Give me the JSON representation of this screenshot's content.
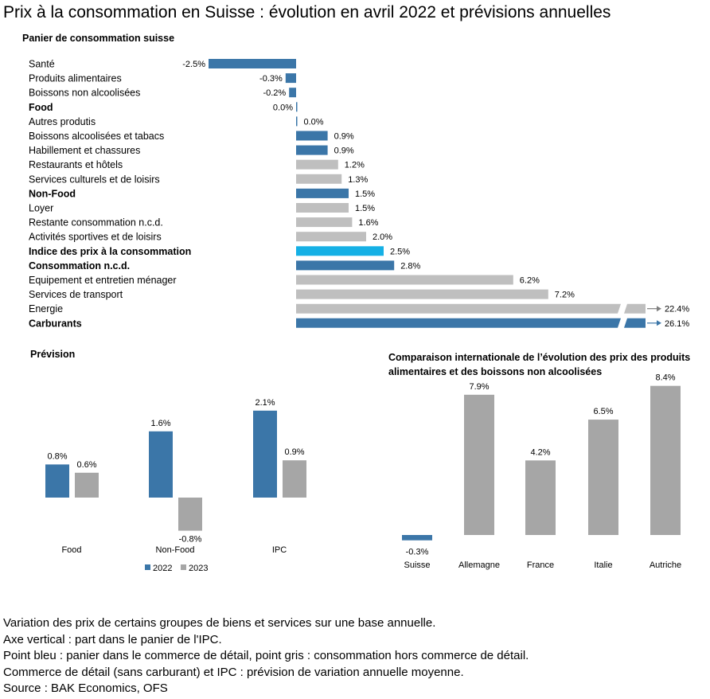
{
  "title": "Prix à la consommation en Suisse : évolution en avril 2022 et prévisions annuelles",
  "colors": {
    "blue": "#3b76a8",
    "gray": "#bfbfbf",
    "gray2": "#a6a6a6",
    "highlight": "#15b0e5",
    "arrow": "#7f7f7f"
  },
  "chart_data": [
    {
      "type": "bar",
      "orientation": "horizontal",
      "title": "Panier de consommation suisse",
      "categories": [
        "Santé",
        "Produits alimentaires",
        "Boissons non alcoolisées",
        "Food",
        "Autres produtis",
        "Boissons alcoolisées et tabacs",
        "Habillement et chassures",
        "Restaurants et hôtels",
        "Services culturels et de loisirs",
        "Non-Food",
        "Loyer",
        "Restante consommation n.c.d.",
        "Activités sportives et de loisirs",
        "Indice des prix à la consommation",
        "Consommation n.c.d.",
        "Equipement et entretien ménager",
        "Services de transport",
        "Energie",
        "Carburants"
      ],
      "values": [
        -2.5,
        -0.3,
        -0.2,
        0.0,
        0.0,
        0.9,
        0.9,
        1.2,
        1.3,
        1.5,
        1.5,
        1.6,
        2.0,
        2.5,
        2.8,
        6.2,
        7.2,
        22.4,
        26.1
      ],
      "labels": [
        "-2.5%",
        "-0.3%",
        "-0.2%",
        "0.0%",
        "0.0%",
        "0.9%",
        "0.9%",
        "1.2%",
        "1.3%",
        "1.5%",
        "1.5%",
        "1.6%",
        "2.0%",
        "2.5%",
        "2.8%",
        "6.2%",
        "7.2%",
        "22.4%",
        "26.1%"
      ],
      "bold": [
        false,
        false,
        false,
        true,
        false,
        false,
        false,
        false,
        false,
        true,
        false,
        false,
        false,
        true,
        true,
        false,
        false,
        false,
        true
      ],
      "colors": [
        "blue",
        "blue",
        "blue",
        "blue",
        "blue",
        "blue",
        "blue",
        "gray",
        "gray",
        "blue",
        "gray",
        "gray",
        "gray",
        "highlight",
        "blue",
        "gray",
        "gray",
        "gray",
        "blue"
      ],
      "broken": [
        false,
        false,
        false,
        false,
        false,
        false,
        false,
        false,
        false,
        false,
        false,
        false,
        false,
        false,
        false,
        false,
        false,
        true,
        true
      ]
    },
    {
      "type": "bar",
      "title": "Prévision",
      "categories": [
        "Food",
        "Non-Food",
        "IPC"
      ],
      "series": [
        {
          "name": "2022",
          "values": [
            0.8,
            1.6,
            2.1
          ],
          "labels": [
            "0.8%",
            "1.6%",
            "2.1%"
          ]
        },
        {
          "name": "2023",
          "values": [
            0.6,
            -0.8,
            0.9
          ],
          "labels": [
            "0.6%",
            "-0.8%",
            "0.9%"
          ]
        }
      ],
      "legend": "bottom"
    },
    {
      "type": "bar",
      "title": "Comparaison internationale de l’évolution des prix des produits alimentaires et des boissons non alcoolisées",
      "title_lines": [
        "Comparaison internationale de l’évolution des prix des produits",
        "alimentaires et des boissons non alcoolisées"
      ],
      "categories": [
        "Suisse",
        "Allemagne",
        "France",
        "Italie",
        "Autriche"
      ],
      "values": [
        -0.3,
        7.9,
        4.2,
        6.5,
        8.4
      ],
      "labels": [
        "-0.3%",
        "7.9%",
        "4.2%",
        "6.5%",
        "8.4%"
      ],
      "colors": [
        "blue",
        "gray2",
        "gray2",
        "gray2",
        "gray2"
      ]
    }
  ],
  "footer": [
    "Variation des prix de certains groupes de biens et services sur une base annuelle.",
    "Axe vertical : part dans le panier de l'IPC.",
    "Point bleu : panier dans le commerce de détail, point gris : consommation hors commerce de détail.",
    "Commerce de détail (sans carburant) et IPC : prévision de variation annuelle moyenne.",
    "Source : BAK Economics, OFS"
  ]
}
